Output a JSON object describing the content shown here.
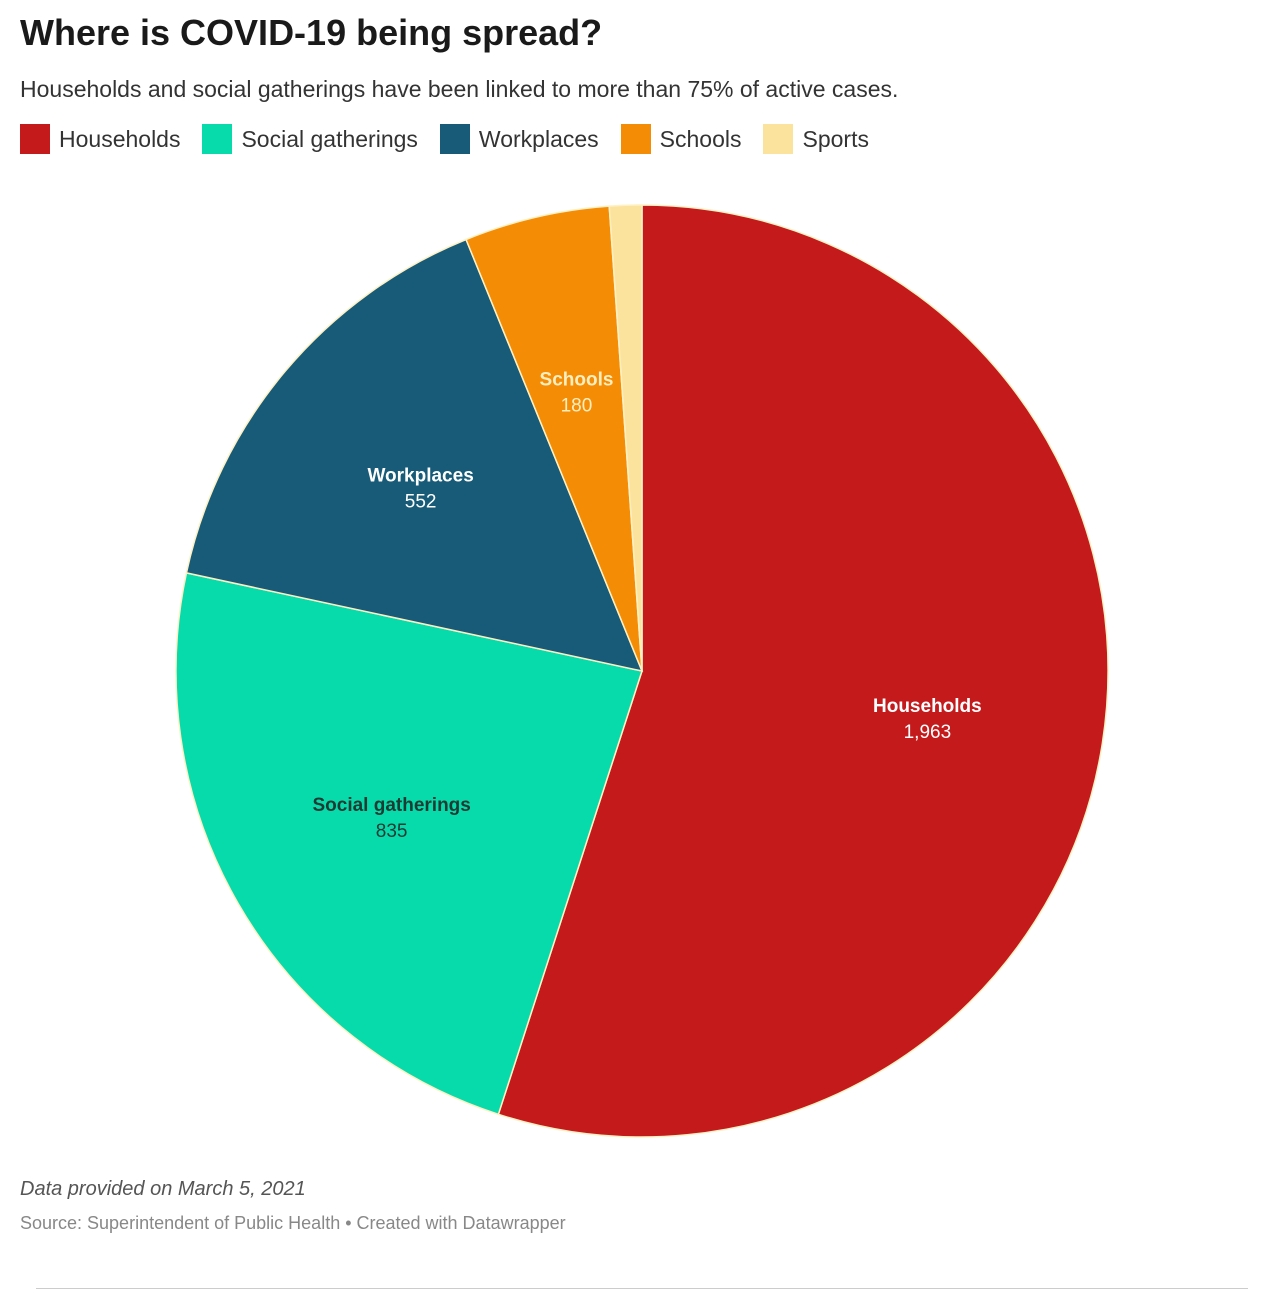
{
  "chart_data": {
    "type": "pie",
    "title": "Where is COVID-19 being spread?",
    "subtitle": "Households and social gatherings have been linked to more than 75% of active cases.",
    "legend_position": "top-left",
    "slices": [
      {
        "label": "Households",
        "value": 1963,
        "value_label": "1,963",
        "color": "#c41a1c",
        "text_color": "#ffffff",
        "show_label": true
      },
      {
        "label": "Social gatherings",
        "value": 835,
        "value_label": "835",
        "color": "#08dbab",
        "text_color": "#1d3a33",
        "show_label": true
      },
      {
        "label": "Workplaces",
        "value": 552,
        "value_label": "552",
        "color": "#175b78",
        "text_color": "#ffffff",
        "show_label": true
      },
      {
        "label": "Schools",
        "value": 180,
        "value_label": "180",
        "color": "#f48d05",
        "text_color": "#ffeec0",
        "show_label": true
      },
      {
        "label": "Sports",
        "value": 40,
        "value_label": "",
        "color": "#fbe39e",
        "text_color": "#333333",
        "show_label": false
      }
    ],
    "note": "Data provided on March 5, 2021",
    "source": "Source: Superintendent of Public Health • Created with Datawrapper"
  }
}
